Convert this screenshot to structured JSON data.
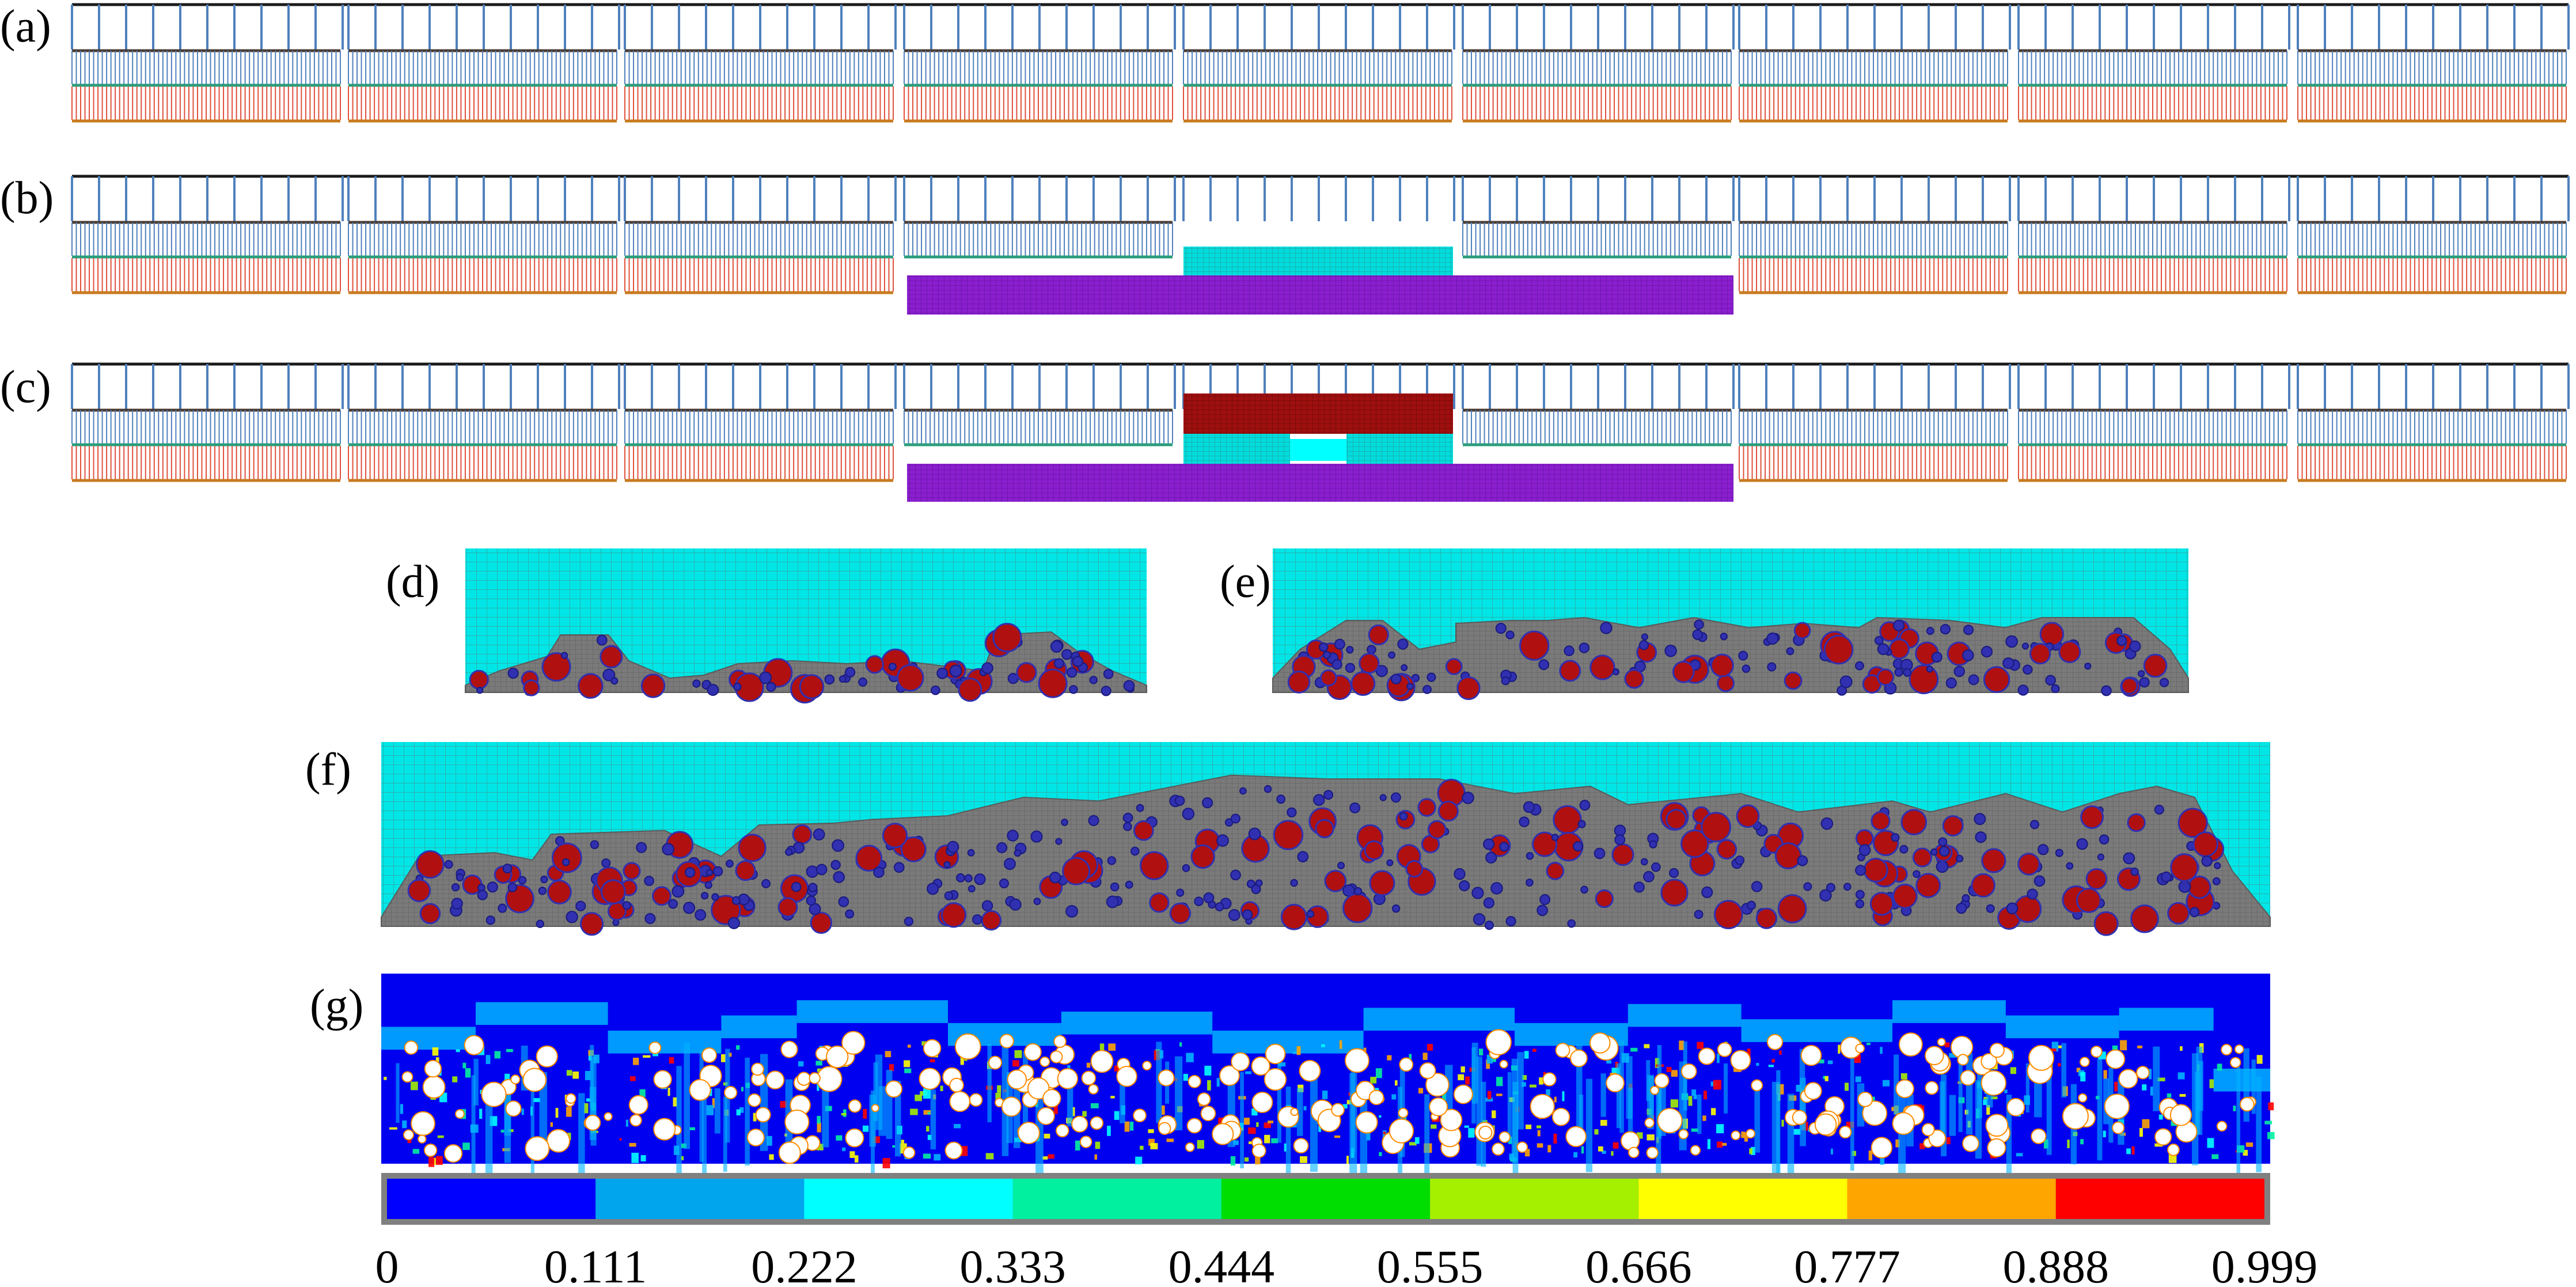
{
  "panels": [
    {
      "id": "a",
      "label": "(a)"
    },
    {
      "id": "b",
      "label": "(b)"
    },
    {
      "id": "c",
      "label": "(c)"
    },
    {
      "id": "d",
      "label": "(d)"
    },
    {
      "id": "e",
      "label": "(e)"
    },
    {
      "id": "f",
      "label": "(f)"
    },
    {
      "id": "g",
      "label": "(g)"
    }
  ],
  "colorbar": {
    "ticks": [
      "0",
      "0.111",
      "0.222",
      "0.333",
      "0.444",
      "0.555",
      "0.666",
      "0.777",
      "0.888",
      "0.999"
    ],
    "colors": [
      "#0000ff",
      "#00a5ee",
      "#00ffff",
      "#00f0a0",
      "#00dd00",
      "#a5f000",
      "#ffff00",
      "#ffa500",
      "#ff0000"
    ],
    "frame": "#808080"
  },
  "colors": {
    "top_bar": "#1a1a1a",
    "chain_blue": "#4f81bd",
    "chain_dark": "#4a3b30",
    "chain_green": "#2a9d7a",
    "chain_red": "#e0503c",
    "chain_orange": "#c87a1e",
    "mesh_cyan": "#00e6e6",
    "mesh_purple": "#8a1fcf",
    "mesh_dark_red": "#9e0f0f",
    "deposit_gray": "#7a7a7a",
    "particle_red": "#b01010",
    "particle_blue": "#3030b0",
    "field_blue": "#0000f0",
    "field_light": "#00b4ff"
  }
}
